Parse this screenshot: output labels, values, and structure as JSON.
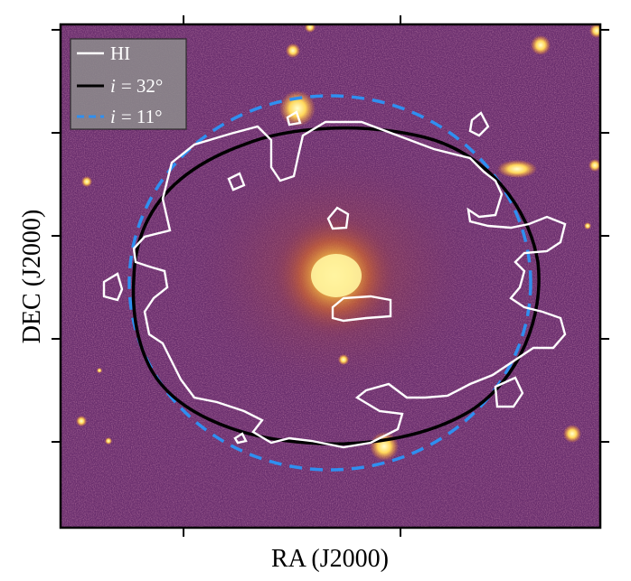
{
  "figure": {
    "xlabel": "RA (J2000)",
    "ylabel": "DEC (J2000)",
    "tick_labels_shown": false
  },
  "legend": {
    "placement": "top-left",
    "entries": [
      {
        "label": "HI",
        "color": "#ffffff",
        "style": "solid"
      },
      {
        "label_var": "i",
        "label_eq": "= 32°",
        "color": "#000000",
        "style": "solid"
      },
      {
        "label_var": "i",
        "label_eq": "= 11°",
        "color": "#2f8ff0",
        "style": "dashed"
      }
    ]
  },
  "image": {
    "colormap": "inferno-like (purple to yellow)",
    "background_color": "#6a2f6e",
    "bright_color": "#fff3a0"
  },
  "overlays": [
    {
      "name": "HI column density contour",
      "color": "#ffffff"
    },
    {
      "name": "tilted-ring model i=32°",
      "color": "#000000"
    },
    {
      "name": "tilted-ring model i=11°",
      "color": "#2f8ff0"
    }
  ]
}
